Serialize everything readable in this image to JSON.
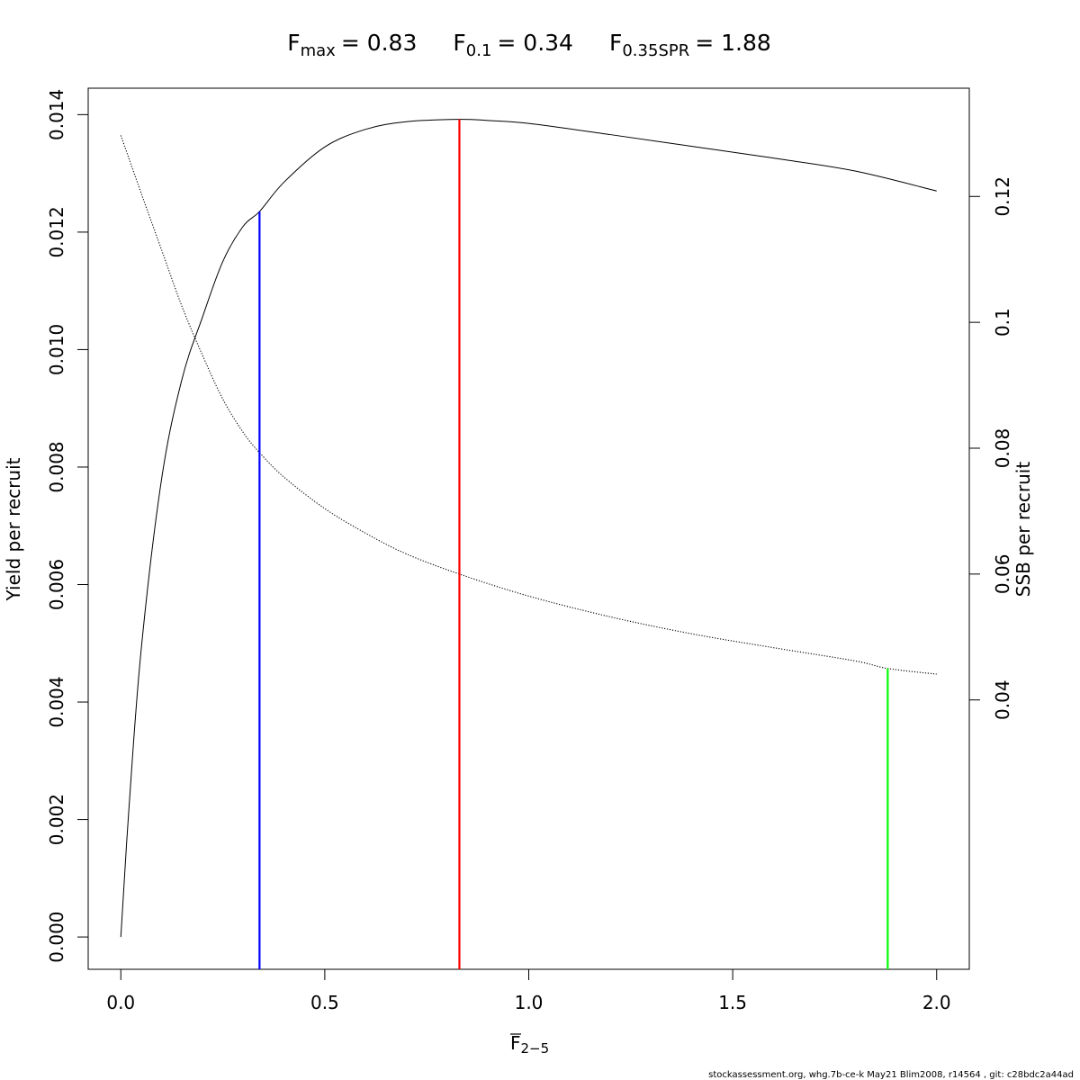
{
  "chart_data": {
    "type": "line",
    "title": {
      "fmax": {
        "base": "F",
        "sub": "max",
        "value": "= 0.83"
      },
      "f01": {
        "base": "F",
        "sub": "0.1",
        "value": "= 0.34"
      },
      "f035": {
        "base": "F",
        "sub": "0.35SPR",
        "value": "= 1.88"
      }
    },
    "xlabel": {
      "base": "F",
      "sub": "2−5"
    },
    "ylabel_left": "Yield per recruit",
    "ylabel_right": "SSB per recruit",
    "xlim": [
      -0.08,
      2.08
    ],
    "ylim_left": [
      -0.00055,
      0.01445
    ],
    "ylim_right": [
      -0.0028,
      0.1372
    ],
    "x_ticks": [
      "0.0",
      "0.5",
      "1.0",
      "1.5",
      "2.0"
    ],
    "y_left_ticks": [
      "0.000",
      "0.002",
      "0.004",
      "0.006",
      "0.008",
      "0.010",
      "0.012",
      "0.014"
    ],
    "y_right_ticks": [
      "0.04",
      "0.06",
      "0.08",
      "0.1",
      "0.12"
    ],
    "series": [
      {
        "axis": "left",
        "style": "solid",
        "color": "#000000",
        "points": [
          [
            0,
            0
          ],
          [
            0.02,
            0.0022
          ],
          [
            0.05,
            0.0049
          ],
          [
            0.1,
            0.0078
          ],
          [
            0.15,
            0.0095
          ],
          [
            0.2,
            0.01055
          ],
          [
            0.25,
            0.0115
          ],
          [
            0.3,
            0.0121
          ],
          [
            0.34,
            0.01235
          ],
          [
            0.4,
            0.01285
          ],
          [
            0.5,
            0.01345
          ],
          [
            0.6,
            0.01375
          ],
          [
            0.7,
            0.01388
          ],
          [
            0.83,
            0.01392
          ],
          [
            0.9,
            0.0139
          ],
          [
            1.0,
            0.01385
          ],
          [
            1.2,
            0.01366
          ],
          [
            1.4,
            0.01346
          ],
          [
            1.6,
            0.01326
          ],
          [
            1.8,
            0.01304
          ],
          [
            2.0,
            0.0127
          ]
        ]
      },
      {
        "axis": "right",
        "style": "dotted",
        "color": "#000000",
        "points": [
          [
            0,
            0.1297
          ],
          [
            0.05,
            0.1205
          ],
          [
            0.1,
            0.1115
          ],
          [
            0.15,
            0.1025
          ],
          [
            0.2,
            0.0948
          ],
          [
            0.25,
            0.0878
          ],
          [
            0.3,
            0.0825
          ],
          [
            0.34,
            0.0793
          ],
          [
            0.4,
            0.0754
          ],
          [
            0.5,
            0.0704
          ],
          [
            0.6,
            0.0665
          ],
          [
            0.7,
            0.0632
          ],
          [
            0.83,
            0.06
          ],
          [
            1.0,
            0.0565
          ],
          [
            1.2,
            0.0532
          ],
          [
            1.4,
            0.0505
          ],
          [
            1.6,
            0.0483
          ],
          [
            1.8,
            0.0462
          ],
          [
            1.88,
            0.045
          ],
          [
            2.0,
            0.0441
          ]
        ]
      }
    ],
    "reference_lines": [
      {
        "name": "F0.1",
        "x": 0.34,
        "color": "#0000ff",
        "axis": "left",
        "y_top": 0.01235
      },
      {
        "name": "Fmax",
        "x": 0.83,
        "color": "#ff0000",
        "axis": "left",
        "y_top": 0.01392
      },
      {
        "name": "F0.35SPR",
        "x": 1.88,
        "color": "#00ff00",
        "axis": "right",
        "y_top": 0.045
      }
    ],
    "grid": false,
    "legend": "none"
  },
  "footer": "stockassessment.org, whg.7b-ce-k  May21  Blim2008, r14564 , git: c28bdc2a44ad"
}
